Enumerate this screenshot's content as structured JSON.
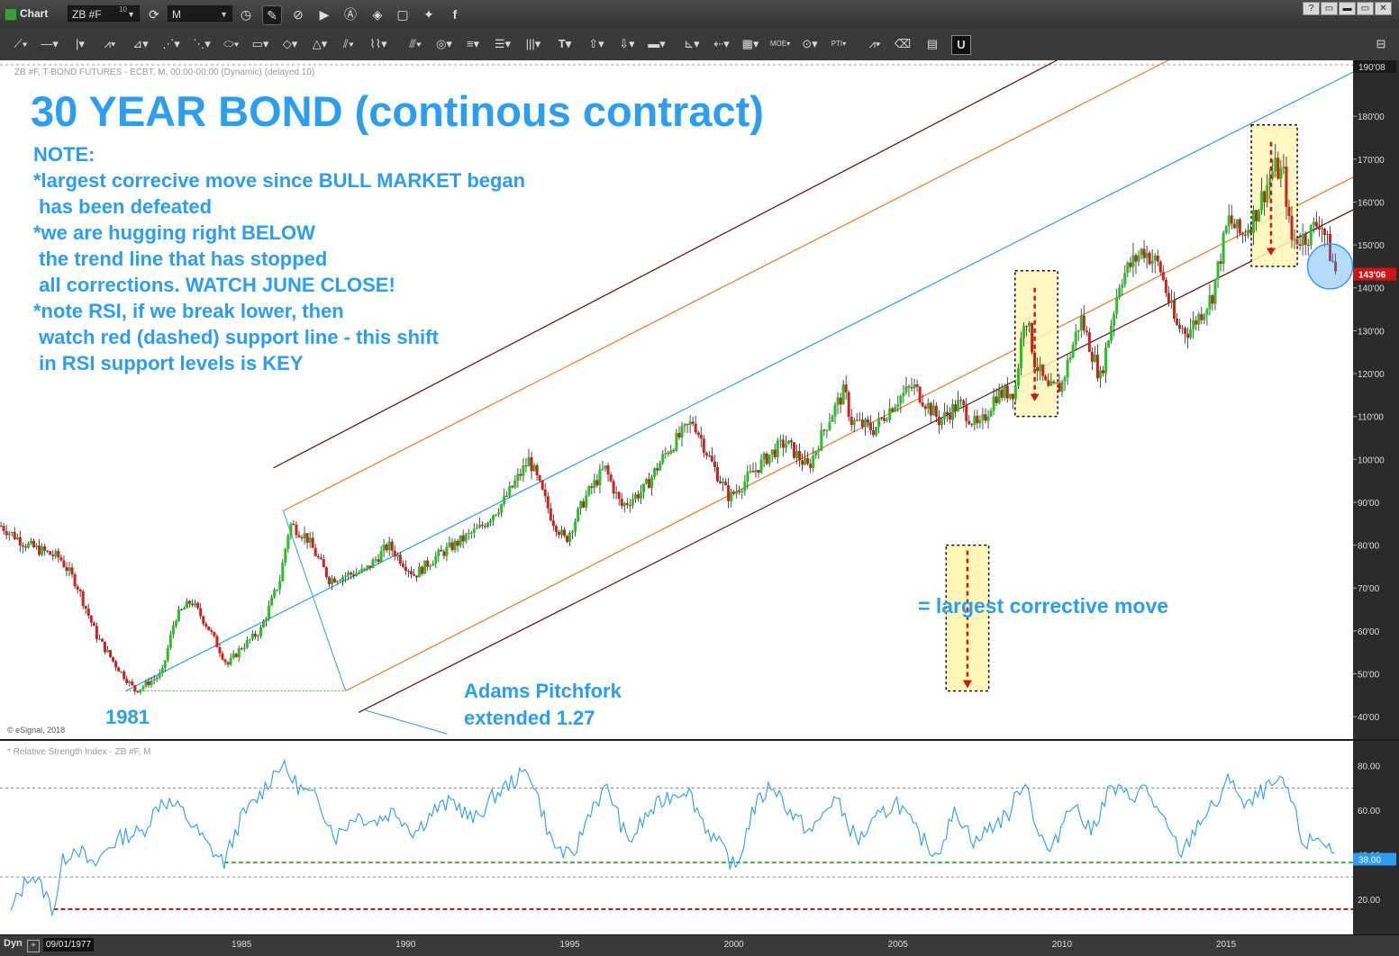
{
  "window": {
    "app_title": "Chart",
    "symbol": "ZB #F",
    "symbol_badge": "10",
    "interval": "M",
    "window_buttons": [
      "?",
      "▭",
      "▬",
      "▭",
      "✕"
    ]
  },
  "toolbar": {
    "icons": [
      "refresh-icon",
      "clock-icon",
      "pencil-icon",
      "link-icon",
      "play-icon",
      "alert-icon",
      "tag-icon",
      "chat-icon",
      "twitter-icon",
      "facebook-icon"
    ]
  },
  "drawing_tools": {
    "icons": [
      "line-tool-icon",
      "horizontal-line-icon",
      "vertical-line-icon",
      "wave-icon",
      "fan-icon",
      "fib-icon",
      "gann-fan-icon",
      "ellipse-icon",
      "rectangle-icon",
      "diamond-icon",
      "triangle-icon",
      "parallel-icon",
      "cycles-icon",
      "channel-icon",
      "circles-icon",
      "levels-icon",
      "lines-icon",
      "bars-icon",
      "text-icon",
      "arrow-up-icon",
      "arrow-down-icon",
      "box-icon",
      "chart-grid-icon",
      "arrow-left-icon",
      "grid-icon",
      "moe-icon",
      "pt-icon",
      "pti-icon",
      "zigzag-icon",
      "eraser-icon",
      "draw-list-icon",
      "magnet-icon",
      "settings-panel-icon"
    ]
  },
  "annotations": {
    "headline": "30 YEAR BOND (continous contract)",
    "note_lines": [
      "NOTE:",
      "*largest correcive move since BULL MARKET began",
      " has been defeated",
      "*we are hugging right BELOW",
      " the trend line that has stopped",
      " all corrections. WATCH JUNE CLOSE!",
      "*note RSI, if we break lower, then",
      " watch red (dashed) support line - this shift",
      " in RSI support levels is KEY"
    ],
    "legend_text": "= largest corrective move",
    "year_1981": "1981",
    "pitchfork_label_1": "Adams Pitchfork",
    "pitchfork_label_2": "extended 1.27"
  },
  "chart_data": [
    {
      "type": "candlestick",
      "header": "ZB #F, T-BOND FUTURES - ECBT, M, 00:00-00:00 (Dynamic) (delayed 10)",
      "watermark": "© eSignal, 2018",
      "ylim": [
        35,
        192
      ],
      "y_tick_values": [
        40,
        50,
        60,
        70,
        80,
        90,
        100,
        110,
        120,
        130,
        140,
        150,
        160,
        170,
        180
      ],
      "y_tick_labels": [
        "40'00",
        "50'00",
        "60'00",
        "70'00",
        "80'00",
        "90'00",
        "100'00",
        "110'00",
        "120'00",
        "130'00",
        "140'00",
        "150'00",
        "160'00",
        "170'00",
        "180'00"
      ],
      "top_label": "190'08",
      "last_price_label": "143'06",
      "last_price_value": 143.2,
      "x_range": [
        "09/01/1977",
        "2018"
      ],
      "x_tick_labels": [
        "1985",
        "1990",
        "1995",
        "2000",
        "2005",
        "2010",
        "2015"
      ],
      "x_tick_years": [
        1985,
        1990,
        1995,
        2000,
        2005,
        2010,
        2015
      ],
      "price_path": [
        [
          1977.7,
          84.5
        ],
        [
          1978.5,
          80
        ],
        [
          1979.5,
          77
        ],
        [
          1980.0,
          71
        ],
        [
          1980.6,
          59
        ],
        [
          1981.2,
          52
        ],
        [
          1981.8,
          46
        ],
        [
          1982.6,
          50
        ],
        [
          1983.0,
          63
        ],
        [
          1983.5,
          67
        ],
        [
          1984.0,
          61
        ],
        [
          1984.6,
          52
        ],
        [
          1985.0,
          56
        ],
        [
          1985.6,
          60
        ],
        [
          1986.2,
          72
        ],
        [
          1986.5,
          85
        ],
        [
          1987.0,
          82
        ],
        [
          1987.7,
          72
        ],
        [
          1988.2,
          73
        ],
        [
          1988.8,
          74
        ],
        [
          1989.5,
          80
        ],
        [
          1990.3,
          73
        ],
        [
          1990.9,
          77
        ],
        [
          1991.5,
          80
        ],
        [
          1992.3,
          84
        ],
        [
          1993.0,
          90
        ],
        [
          1993.8,
          100
        ],
        [
          1994.5,
          86
        ],
        [
          1994.9,
          81
        ],
        [
          1995.5,
          91
        ],
        [
          1996.1,
          98
        ],
        [
          1996.6,
          89
        ],
        [
          1997.3,
          93
        ],
        [
          1998.0,
          102
        ],
        [
          1998.8,
          109
        ],
        [
          1999.3,
          100
        ],
        [
          1999.9,
          91
        ],
        [
          2000.5,
          96
        ],
        [
          2001.1,
          101
        ],
        [
          2001.6,
          104
        ],
        [
          2002.3,
          98
        ],
        [
          2002.9,
          109
        ],
        [
          2003.4,
          116
        ],
        [
          2003.6,
          109
        ],
        [
          2004.3,
          107
        ],
        [
          2005.0,
          114
        ],
        [
          2005.5,
          117
        ],
        [
          2006.3,
          109
        ],
        [
          2006.9,
          113
        ],
        [
          2007.5,
          107
        ],
        [
          2008.0,
          115
        ],
        [
          2008.6,
          116
        ],
        [
          2008.9,
          135
        ],
        [
          2009.2,
          123
        ],
        [
          2009.6,
          116
        ],
        [
          2010.0,
          117
        ],
        [
          2010.6,
          133
        ],
        [
          2011.2,
          119
        ],
        [
          2011.8,
          142
        ],
        [
          2012.5,
          149
        ],
        [
          2013.0,
          145
        ],
        [
          2013.5,
          131
        ],
        [
          2013.9,
          130
        ],
        [
          2014.6,
          138
        ],
        [
          2015.1,
          156
        ],
        [
          2015.5,
          152
        ],
        [
          2015.9,
          157
        ],
        [
          2016.5,
          168
        ],
        [
          2016.8,
          166
        ],
        [
          2017.0,
          151
        ],
        [
          2017.5,
          152
        ],
        [
          2017.9,
          156
        ],
        [
          2018.2,
          148
        ],
        [
          2018.4,
          143
        ]
      ],
      "trend_lines": [
        {
          "name": "median-line",
          "color": "#2a9df4",
          "from": [
            1981.5,
            46
          ],
          "to": [
            2018.9,
            190.3
          ]
        },
        {
          "name": "upper-parallel-orange",
          "color": "#f07a1e",
          "from": [
            1986.3,
            88
          ],
          "to": [
            2018.9,
            215
          ]
        },
        {
          "name": "upper-parallel-brown",
          "color": "#5a0f0f",
          "from": [
            1986.0,
            98
          ],
          "to": [
            2018.9,
            229
          ]
        },
        {
          "name": "lower-parallel-orange",
          "color": "#f07a1e",
          "from": [
            1988.2,
            46
          ],
          "to": [
            2018.9,
            165.8
          ]
        },
        {
          "name": "lower-parallel-brown",
          "color": "#5a0f0f",
          "from": [
            1988.6,
            41
          ],
          "to": [
            2018.9,
            158.2
          ]
        }
      ],
      "highlight_boxes": [
        {
          "x0": 2008.6,
          "x1": 2009.9,
          "y0": 110,
          "y1": 144
        },
        {
          "x0": 2015.8,
          "x1": 2017.2,
          "y0": 145,
          "y1": 178
        }
      ],
      "legend_box": {
        "x0": 2006.5,
        "x1": 2007.8,
        "y0": 46,
        "y1": 80
      },
      "focus_circle": {
        "x": 2018.2,
        "y": 145
      }
    },
    {
      "type": "line",
      "header": "* Relative Strength Index - ZB #F, M",
      "ylim": [
        5,
        90
      ],
      "y_tick_values": [
        20,
        40,
        60,
        80
      ],
      "y_tick_labels": [
        "20.00",
        "40.00",
        "60.00",
        "80.00"
      ],
      "last_value_label": "38.00",
      "last_value": 38,
      "guide_levels": [
        70,
        30
      ],
      "green_support": {
        "value": 36.5,
        "from": 1984.5,
        "color": "#33b233"
      },
      "red_support": {
        "value": 15.5,
        "from": 1979.3,
        "color": "#d41414"
      },
      "rsi_path": [
        [
          1978.0,
          15
        ],
        [
          1978.6,
          32
        ],
        [
          1979.0,
          24
        ],
        [
          1979.3,
          15
        ],
        [
          1979.6,
          38
        ],
        [
          1980.0,
          44
        ],
        [
          1980.5,
          34
        ],
        [
          1981.0,
          44
        ],
        [
          1981.5,
          49
        ],
        [
          1982.0,
          50
        ],
        [
          1982.6,
          65
        ],
        [
          1983.2,
          60
        ],
        [
          1984.0,
          44
        ],
        [
          1984.5,
          36.5
        ],
        [
          1985.0,
          56
        ],
        [
          1985.6,
          67
        ],
        [
          1986.2,
          81
        ],
        [
          1986.8,
          70
        ],
        [
          1987.4,
          64
        ],
        [
          1987.9,
          48
        ],
        [
          1988.5,
          58
        ],
        [
          1989.1,
          55
        ],
        [
          1989.7,
          60
        ],
        [
          1990.3,
          50
        ],
        [
          1990.9,
          60
        ],
        [
          1991.5,
          64
        ],
        [
          1992.1,
          55
        ],
        [
          1992.7,
          66
        ],
        [
          1993.2,
          72
        ],
        [
          1993.8,
          78
        ],
        [
          1994.5,
          45
        ],
        [
          1995.1,
          38
        ],
        [
          1995.7,
          62
        ],
        [
          1996.2,
          70
        ],
        [
          1996.8,
          45
        ],
        [
          1997.4,
          58
        ],
        [
          1998.0,
          66
        ],
        [
          1998.6,
          70
        ],
        [
          1999.2,
          52
        ],
        [
          1999.8,
          40
        ],
        [
          2000.1,
          33
        ],
        [
          2000.6,
          60
        ],
        [
          2001.2,
          72
        ],
        [
          2001.8,
          58
        ],
        [
          2002.4,
          50
        ],
        [
          2003.1,
          66
        ],
        [
          2003.8,
          46
        ],
        [
          2004.4,
          56
        ],
        [
          2005.0,
          64
        ],
        [
          2005.6,
          50
        ],
        [
          2006.2,
          40
        ],
        [
          2006.8,
          60
        ],
        [
          2007.4,
          45
        ],
        [
          2007.8,
          52
        ],
        [
          2008.4,
          58
        ],
        [
          2008.9,
          75
        ],
        [
          2009.3,
          50
        ],
        [
          2009.7,
          40
        ],
        [
          2010.3,
          65
        ],
        [
          2010.9,
          50
        ],
        [
          2011.5,
          70
        ],
        [
          2012.1,
          66
        ],
        [
          2012.6,
          70
        ],
        [
          2013.1,
          55
        ],
        [
          2013.7,
          40
        ],
        [
          2014.2,
          55
        ],
        [
          2014.8,
          64
        ],
        [
          2015.2,
          76
        ],
        [
          2015.6,
          60
        ],
        [
          2016.1,
          68
        ],
        [
          2016.6,
          72
        ],
        [
          2016.9,
          70
        ],
        [
          2017.4,
          44
        ],
        [
          2017.8,
          48
        ],
        [
          2018.1,
          45
        ],
        [
          2018.4,
          38
        ]
      ]
    }
  ]
}
